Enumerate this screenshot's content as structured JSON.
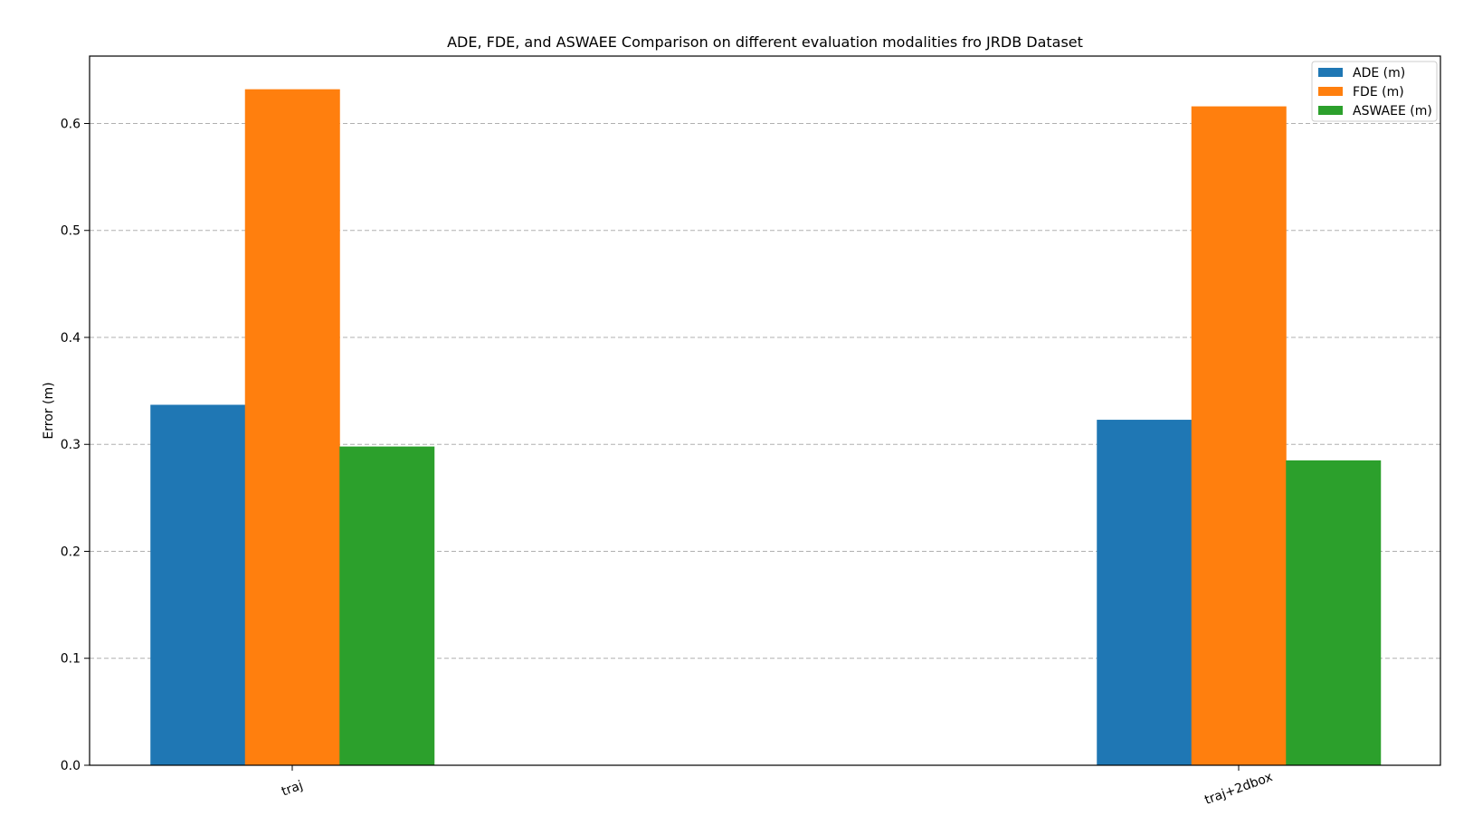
{
  "chart_data": {
    "type": "bar",
    "title": "ADE, FDE, and ASWAEE Comparison on different evaluation modalities fro JRDB Dataset",
    "xlabel": "",
    "ylabel": "Error (m)",
    "categories": [
      "traj",
      "traj+2dbox"
    ],
    "series": [
      {
        "name": "ADE (m)",
        "values": [
          0.337,
          0.323
        ],
        "color": "#1f77b4"
      },
      {
        "name": "FDE (m)",
        "values": [
          0.632,
          0.616
        ],
        "color": "#ff7f0e"
      },
      {
        "name": "ASWAEE (m)",
        "values": [
          0.298,
          0.285
        ],
        "color": "#2ca02c"
      }
    ],
    "ylim": [
      0,
      0.663
    ],
    "yticks": [
      "0.0",
      "0.1",
      "0.2",
      "0.3",
      "0.4",
      "0.5",
      "0.6"
    ],
    "grid": "y-dashed",
    "legend": "top-right"
  }
}
